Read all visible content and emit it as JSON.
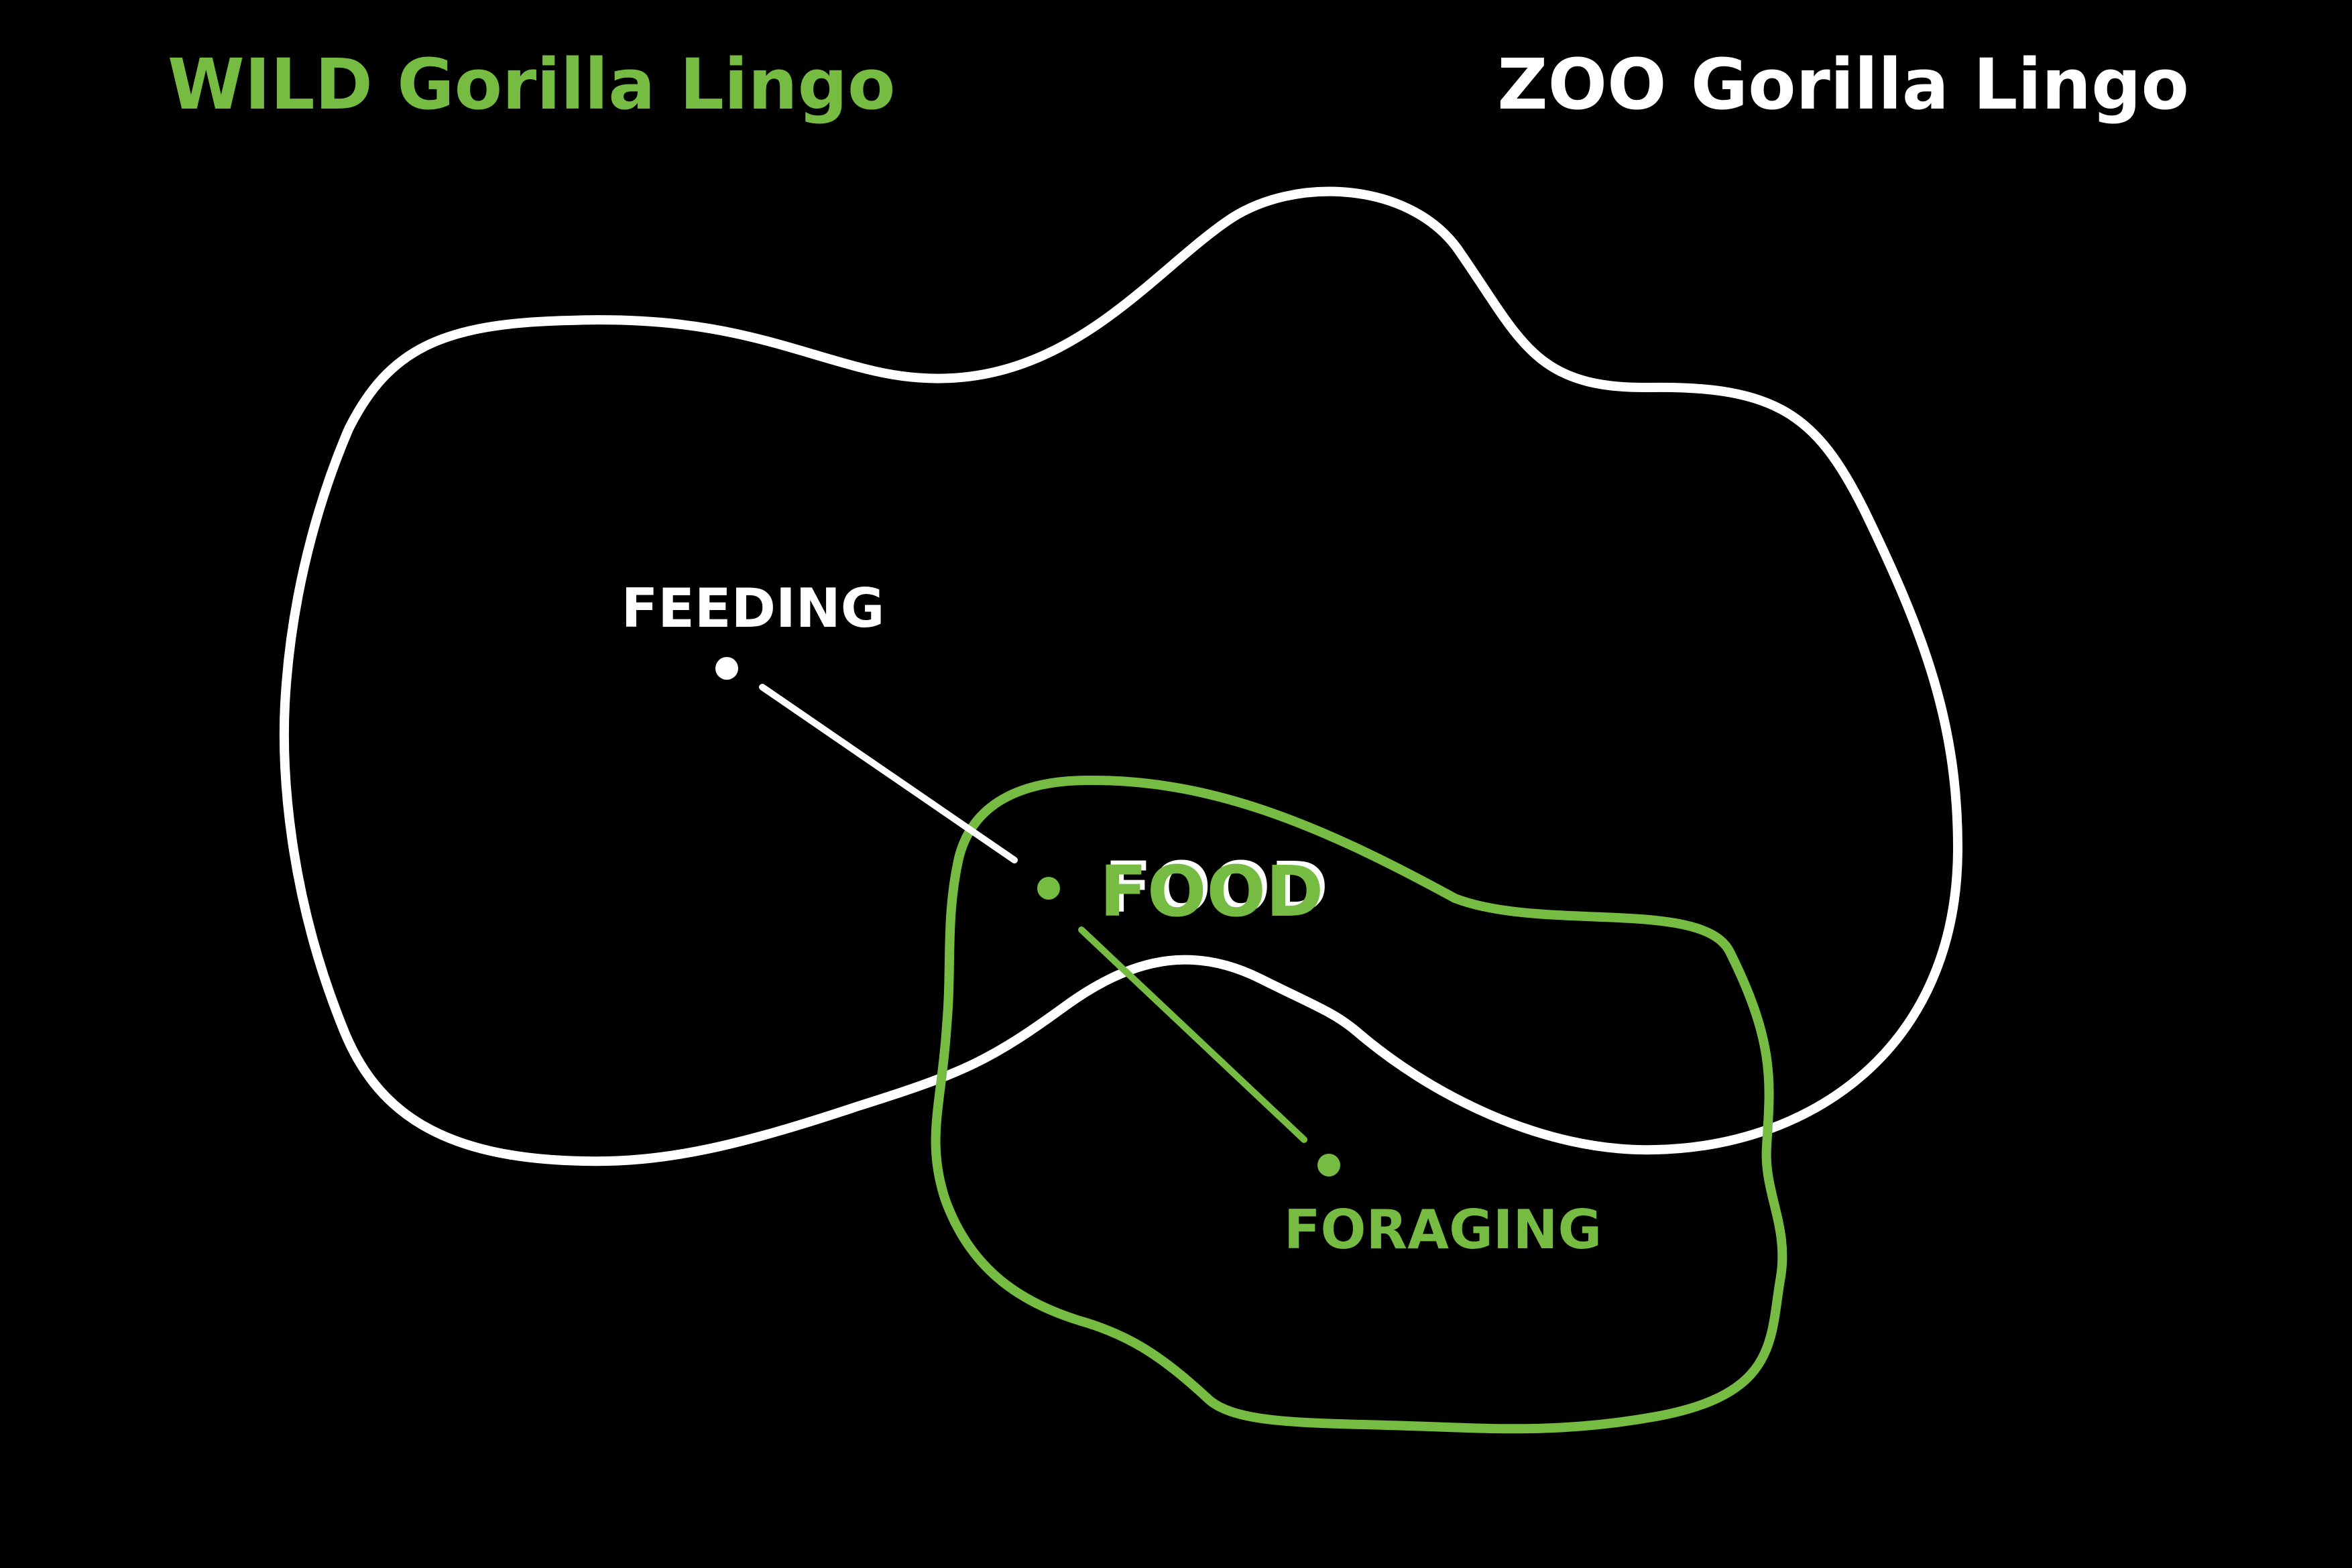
{
  "titles": {
    "wild": "WILD Gorilla Lingo",
    "zoo": "ZOO Gorilla Lingo"
  },
  "terms": {
    "feeding": "FEEDING",
    "food": "FOOD",
    "foraging": "FORAGING"
  },
  "colors": {
    "background": "#000000",
    "wild": "#76BC43",
    "zoo": "#FFFFFF"
  }
}
